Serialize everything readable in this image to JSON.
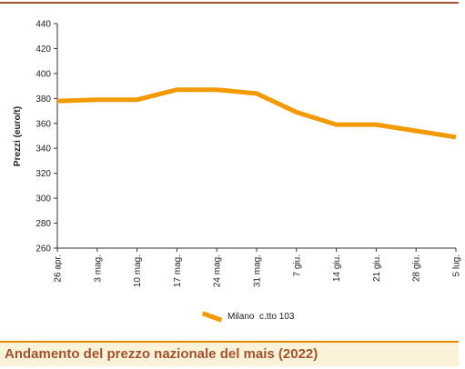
{
  "caption": "Andamento del prezzo nazionale del mais (2022)",
  "colors": {
    "series": "#f29a00",
    "caption_text": "#a0522d",
    "caption_bg": "#fbf3d9",
    "rule": "#e08a00"
  },
  "chart_data": {
    "type": "line",
    "title": "",
    "xlabel": "",
    "ylabel": "Prezzi (euro/t)",
    "ylim": [
      260,
      440
    ],
    "yticks": [
      260,
      280,
      300,
      320,
      340,
      360,
      380,
      400,
      420,
      440
    ],
    "categories": [
      "26 apr.",
      "3 mag.",
      "10 mag.",
      "17 mag.",
      "24 mag.",
      "31 mag.",
      "7 giu.",
      "14 giu.",
      "21 giu.",
      "28 giu.",
      "5 lug."
    ],
    "grid": false,
    "legend_position": "bottom-center",
    "series": [
      {
        "name": "Milano  c.tto 103",
        "values": [
          378,
          379,
          379,
          387,
          387,
          384,
          369,
          359,
          359,
          354,
          349
        ]
      }
    ]
  }
}
